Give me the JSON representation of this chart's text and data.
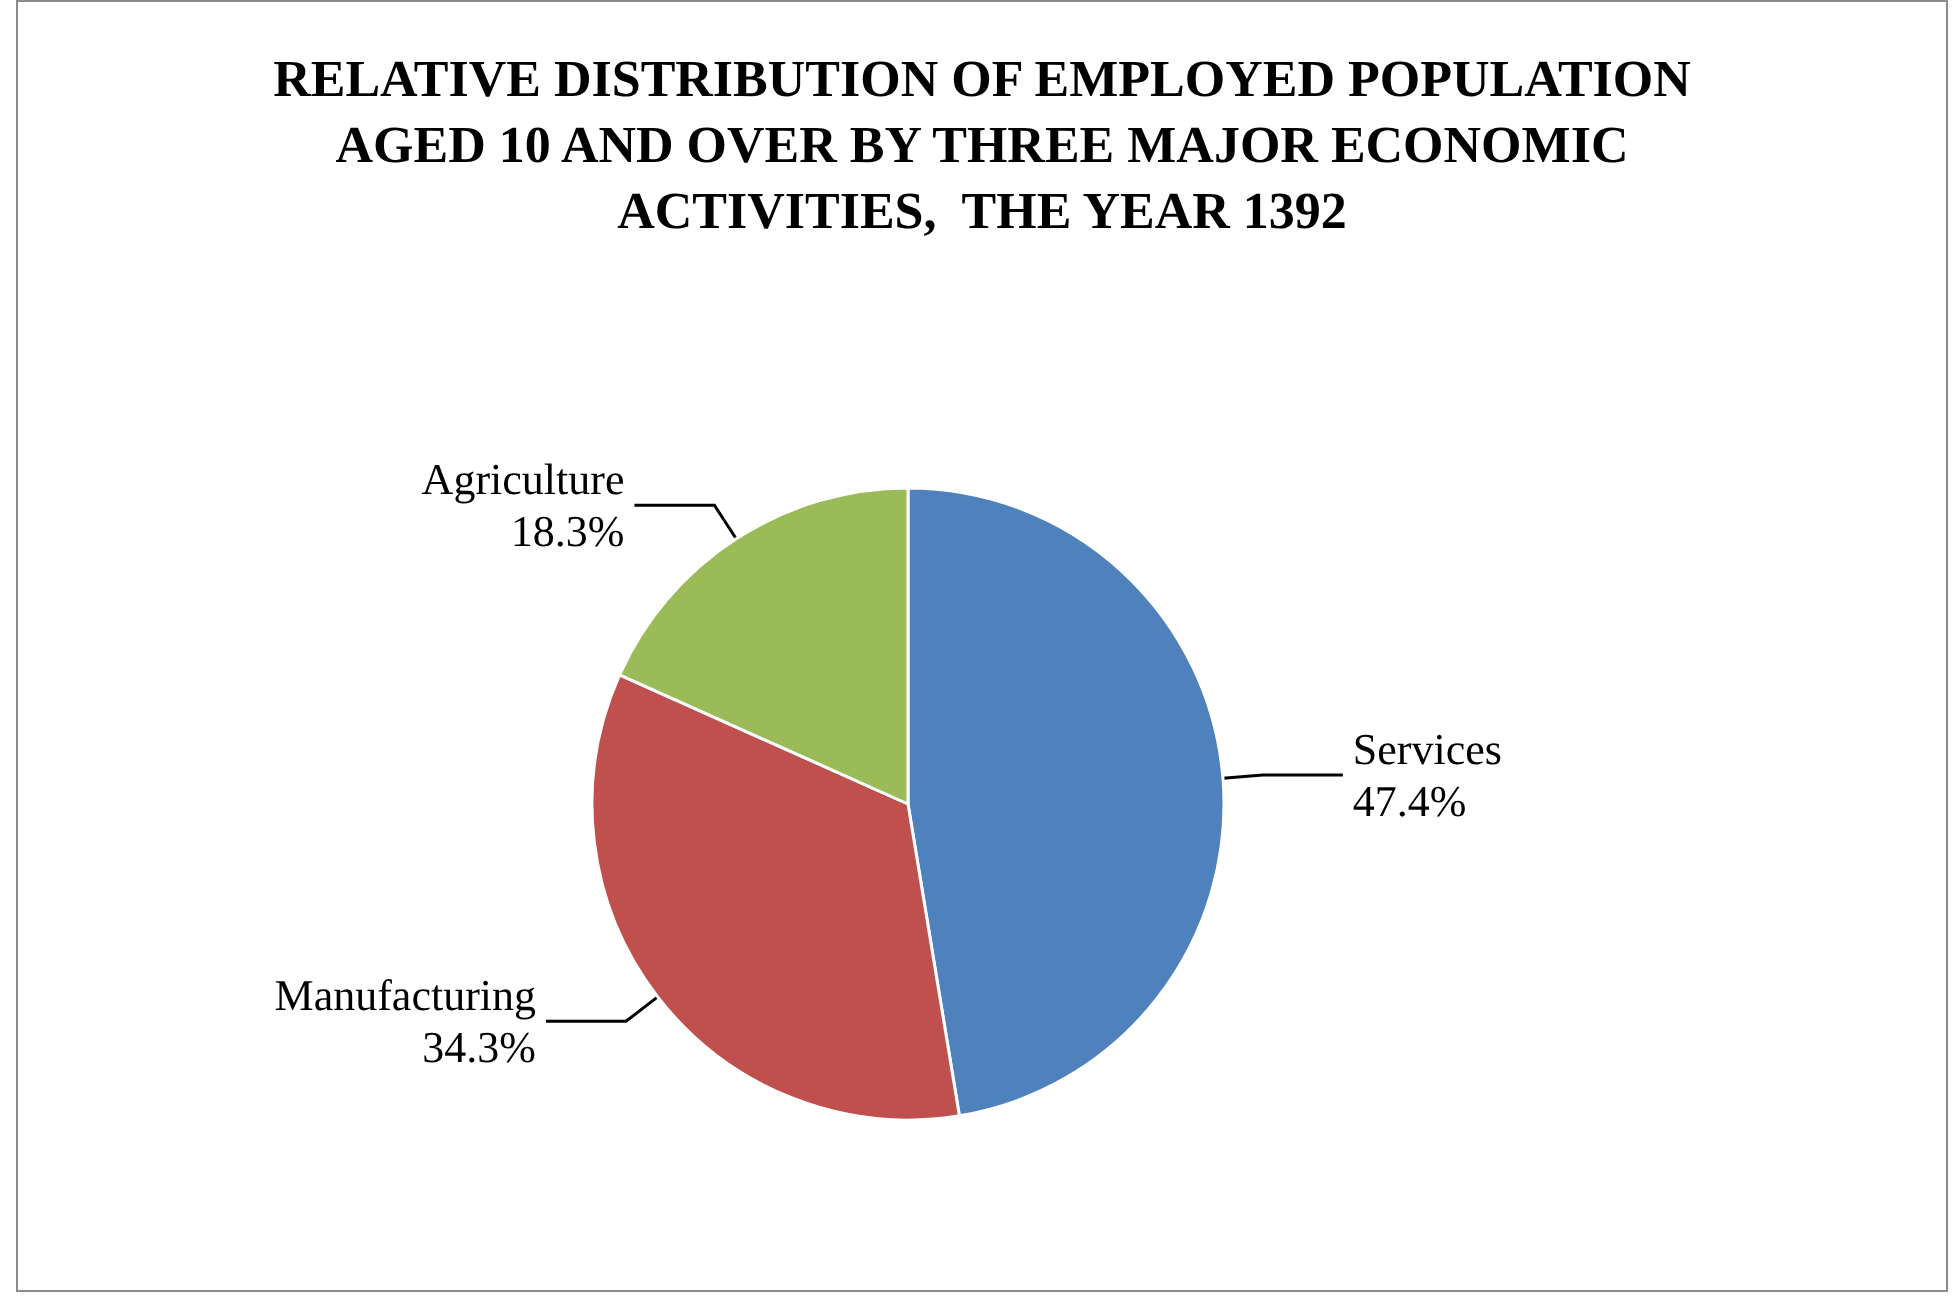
{
  "chart_data": {
    "type": "pie",
    "title": "RELATIVE DISTRIBUTION OF EMPLOYED POPULATION\nAGED 10 AND OVER BY THREE MAJOR ECONOMIC\nACTIVITIES,  THE YEAR 1392",
    "categories": [
      "Services",
      "Manufacturing",
      "Agriculture"
    ],
    "values": [
      47.4,
      34.3,
      18.3
    ],
    "value_labels": [
      "47.4%",
      "34.3%",
      "18.3%"
    ],
    "colors": [
      "#4f81bd",
      "#c0504d",
      "#9bbb59"
    ],
    "legend": false
  }
}
